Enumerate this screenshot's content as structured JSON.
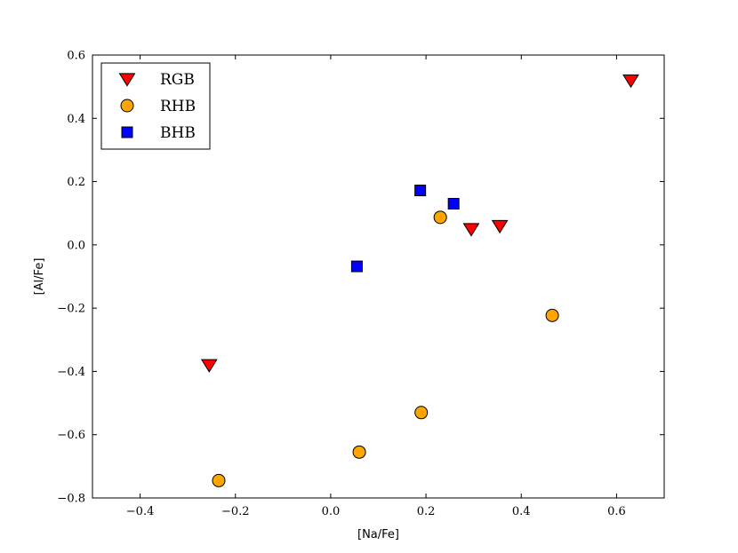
{
  "chart_data": {
    "type": "scatter",
    "xlabel": "[Na/Fe]",
    "ylabel": "[Al/Fe]",
    "xlim": [
      -0.5,
      0.7
    ],
    "ylim": [
      -0.8,
      0.6
    ],
    "xticks": [
      -0.4,
      -0.2,
      0.0,
      0.2,
      0.4,
      0.6
    ],
    "yticks": [
      -0.8,
      -0.6,
      -0.4,
      -0.2,
      0.0,
      0.2,
      0.4,
      0.6
    ],
    "xtick_labels": [
      "−0.4",
      "−0.2",
      "0.0",
      "0.2",
      "0.4",
      "0.6"
    ],
    "ytick_labels": [
      "−0.8",
      "−0.6",
      "−0.4",
      "−0.2",
      "0.0",
      "0.2",
      "0.4",
      "0.6"
    ],
    "grid": false,
    "legend_position": "top-left",
    "series": [
      {
        "name": "RGB",
        "marker": "triangle-down",
        "color": "#ff0000",
        "points": [
          {
            "x": -0.255,
            "y": -0.38
          },
          {
            "x": 0.295,
            "y": 0.05
          },
          {
            "x": 0.355,
            "y": 0.06
          },
          {
            "x": 0.63,
            "y": 0.52
          }
        ]
      },
      {
        "name": "RHB",
        "marker": "circle",
        "color": "#ffa500",
        "points": [
          {
            "x": -0.235,
            "y": -0.745
          },
          {
            "x": 0.06,
            "y": -0.655
          },
          {
            "x": 0.19,
            "y": -0.53
          },
          {
            "x": 0.23,
            "y": 0.087
          },
          {
            "x": 0.465,
            "y": -0.223
          }
        ]
      },
      {
        "name": "BHB",
        "marker": "square",
        "color": "#0000ff",
        "points": [
          {
            "x": 0.055,
            "y": -0.068
          },
          {
            "x": 0.188,
            "y": 0.172
          },
          {
            "x": 0.258,
            "y": 0.13
          }
        ]
      }
    ]
  }
}
